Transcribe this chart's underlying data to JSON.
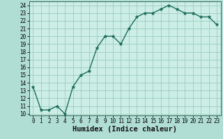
{
  "title": "",
  "xlabel": "Humidex (Indice chaleur)",
  "x": [
    0,
    1,
    2,
    3,
    4,
    5,
    6,
    7,
    8,
    9,
    10,
    11,
    12,
    13,
    14,
    15,
    16,
    17,
    18,
    19,
    20,
    21,
    22,
    23
  ],
  "y": [
    13.5,
    10.5,
    10.5,
    11.0,
    10.0,
    13.5,
    15.0,
    15.5,
    18.5,
    20.0,
    20.0,
    19.0,
    21.0,
    22.5,
    23.0,
    23.0,
    23.5,
    24.0,
    23.5,
    23.0,
    23.0,
    22.5,
    22.5,
    21.5
  ],
  "line_color": "#1a6b5a",
  "marker": "*",
  "marker_size": 3.5,
  "fig_bg": "#b0ddd4",
  "axes_bg": "#cceee6",
  "grid_color": "#99ccbb",
  "spine_color": "#336655",
  "ylim": [
    10,
    24
  ],
  "yticks": [
    10,
    11,
    12,
    13,
    14,
    15,
    16,
    17,
    18,
    19,
    20,
    21,
    22,
    23,
    24
  ],
  "xticks": [
    0,
    1,
    2,
    3,
    4,
    5,
    6,
    7,
    8,
    9,
    10,
    11,
    12,
    13,
    14,
    15,
    16,
    17,
    18,
    19,
    20,
    21,
    22,
    23
  ],
  "tick_fontsize": 5.5,
  "label_fontsize": 7.5,
  "linewidth": 1.0
}
